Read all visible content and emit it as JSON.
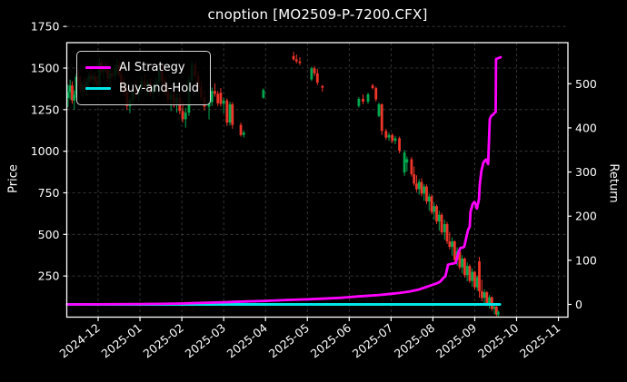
{
  "window": {
    "title": "cnoption [MO2509-P-7200.CFX]"
  },
  "colors": {
    "background": "#000000",
    "text": "#ffffff",
    "grid": "#3f3f3f",
    "spine": "#ffffff",
    "candle_up": "#00a94f",
    "candle_down": "#ee3529",
    "ai_strategy": "#ff00ff",
    "buy_and_hold": "#00e5e5"
  },
  "legend": {
    "items": [
      {
        "label": "AI Strategy",
        "color": "#ff00ff"
      },
      {
        "label": "Buy-and-Hold",
        "color": "#00e5e5"
      }
    ]
  },
  "axes": {
    "y_left": {
      "label": "Price",
      "ticks": [
        250,
        500,
        750,
        1000,
        1250,
        1500,
        1750
      ]
    },
    "y_right": {
      "label": "Return",
      "ticks": [
        0,
        100,
        200,
        300,
        400,
        500
      ]
    },
    "x": {
      "ticks": [
        "2024-12",
        "2025-01",
        "2025-02",
        "2025-03",
        "2025-04",
        "2025-05",
        "2025-06",
        "2025-07",
        "2025-08",
        "2025-09",
        "2025-10",
        "2025-11"
      ]
    }
  },
  "chart_data": {
    "type": "candlestick",
    "title": "cnoption [MO2509-P-7200.CFX]",
    "grid": true,
    "legend_position": "upper left",
    "x_unit": "months after the 2024-12 tick (candles are daily)",
    "price_axis": {
      "label": "Price",
      "side": "left",
      "ticks": [
        250,
        500,
        750,
        1000,
        1250,
        1500,
        1750
      ]
    },
    "return_axis": {
      "label": "Return",
      "side": "right",
      "ticks": [
        0,
        100,
        200,
        300,
        400,
        500
      ]
    },
    "candles_format": [
      "x_month",
      "open",
      "high",
      "low",
      "close"
    ],
    "candles": [
      [
        -0.72,
        1320,
        1400,
        1265,
        1355
      ],
      [
        -0.67,
        1355,
        1430,
        1310,
        1395
      ],
      [
        -0.62,
        1395,
        1420,
        1285,
        1305
      ],
      [
        -0.57,
        1305,
        1365,
        1250,
        1340
      ],
      [
        -0.52,
        1340,
        1465,
        1322,
        1448
      ],
      [
        -0.47,
        1448,
        1492,
        1388,
        1412
      ],
      [
        -0.42,
        1412,
        1455,
        1345,
        1368
      ],
      [
        -0.37,
        1368,
        1422,
        1328,
        1402
      ],
      [
        -0.32,
        1402,
        1448,
        1352,
        1378
      ],
      [
        -0.27,
        1378,
        1440,
        1338,
        1418
      ],
      [
        -0.22,
        1418,
        1475,
        1385,
        1455
      ],
      [
        -0.17,
        1455,
        1505,
        1408,
        1432
      ],
      [
        -0.12,
        1432,
        1468,
        1395,
        1450
      ],
      [
        -0.07,
        1450,
        1478,
        1402,
        1422
      ],
      [
        -0.02,
        1422,
        1452,
        1375,
        1398
      ],
      [
        0.03,
        1398,
        1560,
        1372,
        1532
      ],
      [
        0.08,
        1532,
        1548,
        1458,
        1478
      ],
      [
        0.13,
        1478,
        1518,
        1432,
        1502
      ],
      [
        0.18,
        1502,
        1535,
        1468,
        1488
      ],
      [
        0.23,
        1488,
        1512,
        1418,
        1438
      ],
      [
        0.28,
        1438,
        1495,
        1405,
        1468
      ],
      [
        0.33,
        1468,
        1498,
        1428,
        1452
      ],
      [
        0.4,
        1452,
        1522,
        1425,
        1498
      ],
      [
        0.45,
        1498,
        1555,
        1458,
        1518
      ],
      [
        0.5,
        1518,
        1542,
        1442,
        1462
      ],
      [
        0.55,
        1462,
        1492,
        1378,
        1398
      ],
      [
        0.62,
        1398,
        1448,
        1328,
        1352
      ],
      [
        0.69,
        1352,
        1392,
        1248,
        1272
      ],
      [
        0.76,
        1272,
        1328,
        1230,
        1308
      ],
      [
        0.83,
        1308,
        1378,
        1278,
        1358
      ],
      [
        0.9,
        1358,
        1418,
        1318,
        1342
      ],
      [
        0.97,
        1342,
        1398,
        1298,
        1382
      ],
      [
        1.04,
        1382,
        1448,
        1348,
        1422
      ],
      [
        1.11,
        1422,
        1462,
        1362,
        1388
      ],
      [
        1.18,
        1388,
        1432,
        1338,
        1412
      ],
      [
        1.25,
        1412,
        1438,
        1328,
        1348
      ],
      [
        1.32,
        1348,
        1402,
        1308,
        1388
      ],
      [
        1.39,
        1388,
        1442,
        1352,
        1418
      ],
      [
        1.46,
        1418,
        1502,
        1398,
        1482
      ],
      [
        1.53,
        1482,
        1518,
        1402,
        1422
      ],
      [
        1.6,
        1422,
        1452,
        1332,
        1352
      ],
      [
        1.67,
        1352,
        1398,
        1282,
        1308
      ],
      [
        1.74,
        1308,
        1362,
        1242,
        1342
      ],
      [
        1.81,
        1342,
        1372,
        1262,
        1288
      ],
      [
        1.88,
        1288,
        1348,
        1232,
        1322
      ],
      [
        1.95,
        1322,
        1352,
        1222,
        1242
      ],
      [
        2.02,
        1242,
        1302,
        1172,
        1192
      ],
      [
        2.09,
        1192,
        1262,
        1142,
        1232
      ],
      [
        2.17,
        1232,
        1448,
        1212,
        1428
      ],
      [
        2.24,
        1428,
        1545,
        1408,
        1522
      ],
      [
        2.32,
        1522,
        1538,
        1432,
        1452
      ],
      [
        2.39,
        1452,
        1482,
        1362,
        1385
      ],
      [
        2.46,
        1385,
        1422,
        1302,
        1325
      ],
      [
        2.54,
        1325,
        1368,
        1245,
        1268
      ],
      [
        2.65,
        1268,
        1312,
        1192,
        1295
      ],
      [
        2.72,
        1295,
        1382,
        1272,
        1362
      ],
      [
        2.79,
        1362,
        1408,
        1328,
        1345
      ],
      [
        2.86,
        1345,
        1362,
        1272,
        1288
      ],
      [
        2.93,
        1352,
        1380,
        1268,
        1285
      ],
      [
        3.0,
        1285,
        1322,
        1228,
        1305
      ],
      [
        3.08,
        1305,
        1318,
        1152,
        1172
      ],
      [
        3.15,
        1172,
        1298,
        1155,
        1282
      ],
      [
        3.21,
        1282,
        1295,
        1135,
        1158
      ],
      [
        3.41,
        1158,
        1172,
        1088,
        1098
      ],
      [
        3.48,
        1098,
        1125,
        1082,
        1112
      ],
      [
        3.95,
        1322,
        1378,
        1315,
        1368
      ],
      [
        4.67,
        1572,
        1598,
        1545,
        1552
      ],
      [
        4.74,
        1552,
        1582,
        1528,
        1540
      ],
      [
        4.82,
        1540,
        1565,
        1518,
        1530
      ],
      [
        5.1,
        1432,
        1508,
        1422,
        1498
      ],
      [
        5.17,
        1498,
        1512,
        1452,
        1468
      ],
      [
        5.24,
        1468,
        1495,
        1398,
        1412
      ],
      [
        5.36,
        1392,
        1398,
        1358,
        1382
      ],
      [
        6.23,
        1272,
        1325,
        1262,
        1315
      ],
      [
        6.33,
        1315,
        1342,
        1282,
        1298
      ],
      [
        6.45,
        1298,
        1352,
        1285,
        1342
      ],
      [
        6.56,
        1395,
        1405,
        1372,
        1380
      ],
      [
        6.64,
        1380,
        1388,
        1298,
        1312
      ],
      [
        6.71,
        1212,
        1292,
        1205,
        1282
      ],
      [
        6.78,
        1282,
        1288,
        1098,
        1122
      ],
      [
        6.88,
        1122,
        1135,
        1068,
        1082
      ],
      [
        6.95,
        1082,
        1112,
        1062,
        1098
      ],
      [
        7.03,
        1098,
        1108,
        1048,
        1062
      ],
      [
        7.1,
        1062,
        1092,
        1042,
        1078
      ],
      [
        7.2,
        1078,
        1088,
        988,
        1002
      ],
      [
        7.32,
        872,
        1008,
        852,
        992
      ],
      [
        7.38,
        932,
        968,
        878,
        952
      ],
      [
        7.49,
        952,
        965,
        848,
        862
      ],
      [
        7.55,
        862,
        908,
        792,
        805
      ],
      [
        7.61,
        805,
        855,
        755,
        772
      ],
      [
        7.67,
        772,
        832,
        738,
        815
      ],
      [
        7.73,
        815,
        838,
        728,
        745
      ],
      [
        7.79,
        745,
        802,
        702,
        788
      ],
      [
        7.85,
        788,
        800,
        682,
        698
      ],
      [
        7.91,
        698,
        745,
        642,
        728
      ],
      [
        7.97,
        728,
        740,
        620,
        635
      ],
      [
        8.03,
        635,
        692,
        588,
        670
      ],
      [
        8.09,
        670,
        680,
        562,
        578
      ],
      [
        8.15,
        578,
        642,
        522,
        618
      ],
      [
        8.21,
        618,
        630,
        498,
        512
      ],
      [
        8.28,
        512,
        588,
        468,
        562
      ],
      [
        8.34,
        562,
        575,
        442,
        458
      ],
      [
        8.4,
        458,
        515,
        410,
        425
      ],
      [
        8.46,
        425,
        482,
        372,
        458
      ],
      [
        8.52,
        458,
        465,
        332,
        348
      ],
      [
        8.58,
        348,
        422,
        312,
        400
      ],
      [
        8.64,
        400,
        410,
        288,
        302
      ],
      [
        8.7,
        302,
        375,
        265,
        355
      ],
      [
        8.76,
        355,
        362,
        240,
        255
      ],
      [
        8.82,
        255,
        332,
        218,
        310
      ],
      [
        8.88,
        310,
        320,
        208,
        220
      ],
      [
        8.94,
        220,
        295,
        185,
        275
      ],
      [
        9.0,
        275,
        282,
        170,
        182
      ],
      [
        9.06,
        182,
        252,
        162,
        242
      ],
      [
        9.11,
        338,
        365,
        120,
        158
      ],
      [
        9.17,
        158,
        228,
        98,
        118
      ],
      [
        9.23,
        118,
        170,
        80,
        152
      ],
      [
        9.29,
        152,
        160,
        68,
        82
      ],
      [
        9.35,
        82,
        135,
        55,
        122
      ],
      [
        9.41,
        122,
        128,
        40,
        52
      ],
      [
        9.47,
        52,
        78,
        20,
        65
      ],
      [
        9.52,
        65,
        70,
        8,
        18
      ],
      [
        9.56,
        18,
        42,
        5,
        35
      ]
    ],
    "series": [
      {
        "name": "AI Strategy",
        "axis": "return",
        "color": "#ff00ff",
        "points": [
          [
            -0.74,
            0
          ],
          [
            0,
            0.2
          ],
          [
            1,
            0.8
          ],
          [
            1.5,
            1.2
          ],
          [
            2,
            2
          ],
          [
            2.32,
            3
          ],
          [
            3,
            5
          ],
          [
            3.5,
            6.5
          ],
          [
            4,
            8
          ],
          [
            4.5,
            10
          ],
          [
            5,
            11.5
          ],
          [
            5.36,
            13
          ],
          [
            5.8,
            15
          ],
          [
            6.21,
            18
          ],
          [
            6.5,
            20
          ],
          [
            6.75,
            21.5
          ],
          [
            7,
            24
          ],
          [
            7.2,
            26
          ],
          [
            7.43,
            29
          ],
          [
            7.64,
            33
          ],
          [
            7.8,
            38
          ],
          [
            7.95,
            43
          ],
          [
            8.08,
            47
          ],
          [
            8.18,
            52
          ],
          [
            8.25,
            60
          ],
          [
            8.3,
            64
          ],
          [
            8.36,
            90
          ],
          [
            8.45,
            92
          ],
          [
            8.55,
            94
          ],
          [
            8.58,
            107
          ],
          [
            8.62,
            121
          ],
          [
            8.66,
            128
          ],
          [
            8.72,
            129
          ],
          [
            8.75,
            131
          ],
          [
            8.8,
            152
          ],
          [
            8.84,
            169
          ],
          [
            8.88,
            176
          ],
          [
            8.9,
            210
          ],
          [
            8.95,
            227
          ],
          [
            8.99,
            232
          ],
          [
            9.02,
            228
          ],
          [
            9.05,
            217
          ],
          [
            9.1,
            238
          ],
          [
            9.12,
            272
          ],
          [
            9.16,
            303
          ],
          [
            9.21,
            322
          ],
          [
            9.24,
            326
          ],
          [
            9.27,
            328
          ],
          [
            9.3,
            322
          ],
          [
            9.32,
            318
          ],
          [
            9.36,
            420
          ],
          [
            9.4,
            428
          ],
          [
            9.44,
            430
          ],
          [
            9.47,
            434
          ],
          [
            9.5,
            436
          ],
          [
            9.51,
            556
          ],
          [
            9.62,
            560
          ]
        ]
      },
      {
        "name": "Buy-and-Hold",
        "axis": "return",
        "color": "#00e5e5",
        "points": [
          [
            -0.74,
            0
          ],
          [
            9.6,
            0
          ]
        ]
      }
    ]
  }
}
